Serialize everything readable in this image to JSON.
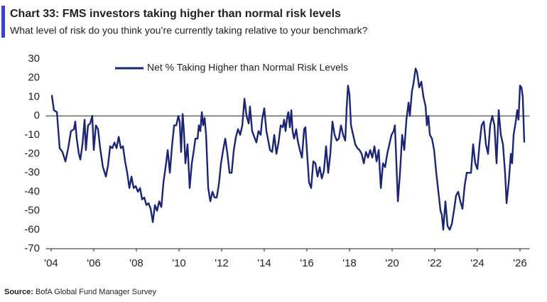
{
  "chart_data": {
    "type": "line",
    "title": "Chart 33: FMS investors taking higher than normal risk levels",
    "subtitle": "What level of risk do you think you’re currently taking relative to your benchmark?",
    "source_label": "Source:",
    "source": "BofA Global Fund Manager Survey",
    "legend": "top",
    "x": [
      2004.03,
      2004.13,
      2004.27,
      2004.4,
      2004.53,
      2004.67,
      2004.8,
      2004.93,
      2005.07,
      2005.13,
      2005.2,
      2005.3,
      2005.37,
      2005.47,
      2005.57,
      2005.63,
      2005.73,
      2005.83,
      2005.93,
      2006.0,
      2006.1,
      2006.2,
      2006.3,
      2006.43,
      2006.57,
      2006.67,
      2006.77,
      2006.87,
      2006.97,
      2007.07,
      2007.17,
      2007.27,
      2007.37,
      2007.47,
      2007.57,
      2007.67,
      2007.77,
      2007.87,
      2007.97,
      2008.07,
      2008.17,
      2008.27,
      2008.37,
      2008.47,
      2008.57,
      2008.67,
      2008.77,
      2008.87,
      2008.97,
      2009.07,
      2009.17,
      2009.27,
      2009.37,
      2009.47,
      2009.57,
      2009.67,
      2009.77,
      2009.87,
      2009.97,
      2010.03,
      2010.1,
      2010.17,
      2010.23,
      2010.3,
      2010.4,
      2010.5,
      2010.6,
      2010.67,
      2010.77,
      2010.87,
      2010.93,
      2011.0,
      2011.07,
      2011.13,
      2011.2,
      2011.27,
      2011.37,
      2011.47,
      2011.57,
      2011.67,
      2011.77,
      2011.87,
      2011.97,
      2012.07,
      2012.17,
      2012.27,
      2012.37,
      2012.47,
      2012.57,
      2012.67,
      2012.77,
      2012.87,
      2012.97,
      2013.07,
      2013.17,
      2013.27,
      2013.33,
      2013.43,
      2013.53,
      2013.63,
      2013.73,
      2013.83,
      2013.9,
      2014.0,
      2014.1,
      2014.17,
      2014.27,
      2014.37,
      2014.47,
      2014.57,
      2014.67,
      2014.77,
      2014.87,
      2014.93,
      2015.0,
      2015.07,
      2015.13,
      2015.2,
      2015.27,
      2015.33,
      2015.4,
      2015.5,
      2015.57,
      2015.67,
      2015.77,
      2015.87,
      2015.93,
      2016.0,
      2016.1,
      2016.2,
      2016.3,
      2016.4,
      2016.5,
      2016.6,
      2016.7,
      2016.8,
      2016.9,
      2017.0,
      2017.1,
      2017.2,
      2017.3,
      2017.4,
      2017.5,
      2017.6,
      2017.7,
      2017.8,
      2017.87,
      2017.93,
      2018.0,
      2018.07,
      2018.17,
      2018.27,
      2018.37,
      2018.47,
      2018.57,
      2018.67,
      2018.77,
      2018.87,
      2018.97,
      2019.07,
      2019.17,
      2019.27,
      2019.37,
      2019.47,
      2019.57,
      2019.67,
      2019.77,
      2019.87,
      2019.97,
      2020.07,
      2020.13,
      2020.2,
      2020.27,
      2020.37,
      2020.47,
      2020.57,
      2020.67,
      2020.77,
      2020.83,
      2020.93,
      2021.0,
      2021.1,
      2021.17,
      2021.27,
      2021.37,
      2021.47,
      2021.57,
      2021.63,
      2021.7,
      2021.77,
      2021.87,
      2021.97,
      2022.07,
      2022.17,
      2022.27,
      2022.33,
      2022.4,
      2022.5,
      2022.6,
      2022.7,
      2022.8,
      2022.9,
      2023.0,
      2023.1,
      2023.2,
      2023.3,
      2023.4,
      2023.5,
      2023.6,
      2023.7,
      2023.8,
      2023.9,
      2024.0,
      2024.1,
      2024.2,
      2024.3,
      2024.4,
      2024.5,
      2024.6,
      2024.7,
      2024.8,
      2024.9,
      2025.0,
      2025.1,
      2025.2,
      2025.3,
      2025.37,
      2025.47,
      2025.57,
      2025.63,
      2025.7,
      2025.8,
      2025.87,
      2025.93,
      2026.0,
      2026.07,
      2026.13,
      2026.2
    ],
    "series": [
      {
        "name": "Net % Taking Higher than Normal Risk Levels",
        "color": "#1b2574",
        "values": [
          11,
          3,
          2,
          -17,
          -19,
          -24,
          -17,
          -8,
          -7,
          -3,
          -12,
          -20,
          -23,
          -15,
          -2,
          -18,
          -5,
          -4,
          0,
          -18,
          -5,
          -7,
          -17,
          -27,
          -32,
          -26,
          -16,
          -17,
          -14,
          -17,
          -11,
          -17,
          -16,
          -24,
          -30,
          -38,
          -32,
          -38,
          -37,
          -40,
          -38,
          -44,
          -43,
          -47,
          -46,
          -49,
          -56,
          -47,
          -50,
          -45,
          -48,
          -35,
          -27,
          -18,
          -30,
          -16,
          -5,
          -5,
          0,
          -3,
          -19,
          1,
          -8,
          -25,
          -15,
          -38,
          -25,
          -20,
          -12,
          -12,
          -5,
          -8,
          2,
          -5,
          -1,
          -10,
          -38,
          -45,
          -40,
          -43,
          -43,
          -36,
          -25,
          -18,
          -12,
          -20,
          -30,
          -30,
          -18,
          -11,
          -7,
          -10,
          -5,
          9,
          0,
          -4,
          5,
          -8,
          -11,
          -14,
          -8,
          -10,
          -2,
          4,
          -8,
          -12,
          -18,
          -19,
          -10,
          -20,
          -14,
          -5,
          -6,
          -2,
          -8,
          -1,
          2,
          -6,
          3,
          -8,
          -12,
          -7,
          -13,
          -18,
          -22,
          -7,
          -6,
          -18,
          -35,
          -38,
          -24,
          -25,
          -32,
          -27,
          -33,
          -29,
          -16,
          -30,
          -20,
          -3,
          -10,
          -13,
          -12,
          -5,
          -10,
          -13,
          5,
          16,
          11,
          -5,
          -10,
          -15,
          -17,
          -18,
          -20,
          -25,
          -19,
          -22,
          -18,
          -22,
          -16,
          -24,
          -18,
          -38,
          -25,
          -27,
          -20,
          -15,
          -10,
          -8,
          -5,
          -25,
          -45,
          -30,
          -10,
          -18,
          -2,
          7,
          0,
          13,
          17,
          25,
          23,
          15,
          18,
          10,
          5,
          -5,
          0,
          -10,
          -12,
          -18,
          -30,
          -40,
          -50,
          -52,
          -60,
          -45,
          -58,
          -60,
          -57,
          -50,
          -42,
          -40,
          -45,
          -49,
          -37,
          -30,
          -30,
          -30,
          -15,
          -25,
          -28,
          -15,
          -5,
          -3,
          -15,
          -20,
          -5,
          0,
          -5,
          -25,
          3,
          -10,
          -15,
          -30,
          -46,
          -35,
          -20,
          -25,
          -10,
          -3,
          3,
          -2,
          16,
          15,
          10,
          -14
        ]
      }
    ],
    "xlim": [
      2003.75,
      2026.45
    ],
    "xticks": [
      {
        "value": 2004,
        "label": "'04"
      },
      {
        "value": 2006,
        "label": "'06"
      },
      {
        "value": 2008,
        "label": "'08"
      },
      {
        "value": 2010,
        "label": "'10"
      },
      {
        "value": 2012,
        "label": "'12"
      },
      {
        "value": 2014,
        "label": "'14"
      },
      {
        "value": 2016,
        "label": "'16"
      },
      {
        "value": 2018,
        "label": "'18"
      },
      {
        "value": 2020,
        "label": "'20"
      },
      {
        "value": 2022,
        "label": "'22"
      },
      {
        "value": 2024,
        "label": "'24"
      },
      {
        "value": 2026,
        "label": "'26"
      }
    ],
    "ylim": [
      -70,
      30
    ],
    "yticks": [
      -70,
      -60,
      -50,
      -40,
      -30,
      -20,
      -10,
      0,
      10,
      20,
      30
    ],
    "grid": false
  }
}
